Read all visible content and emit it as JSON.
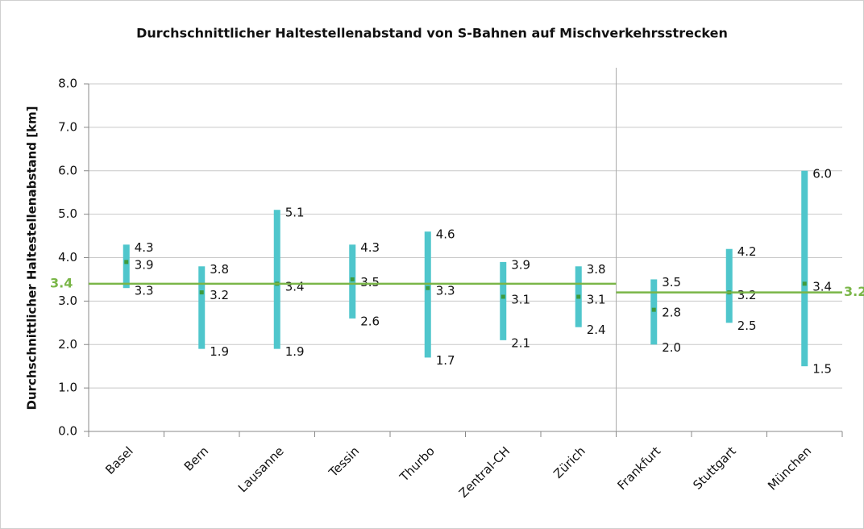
{
  "chart_data": {
    "type": "range",
    "title": "Durchschnittlicher Haltestellenabstand von S-Bahnen auf Mischverkehrsstrecken",
    "y_label": "Durchschnittlicher Haltestellenabstand [km]",
    "categories": [
      "Basel",
      "Bern",
      "Lausanne",
      "Tessin",
      "Thurbo",
      "Zentral-CH",
      "Zürich",
      "Frankfurt",
      "Stuttgart",
      "München"
    ],
    "series": [
      {
        "color": "#4fc6cc",
        "values": [
          4.3,
          3.8,
          5.1,
          4.3,
          4.6,
          3.9,
          3.8,
          3.5,
          4.2,
          6.0
        ],
        "value_labels": [
          "4.3",
          "3.8",
          "5.1",
          "4.3",
          "4.6",
          "3.9",
          "3.8",
          "3.5",
          "4.2",
          "6.0"
        ]
      },
      {
        "color": "#3e9b3e",
        "values": [
          3.9,
          3.2,
          3.4,
          3.5,
          3.3,
          3.1,
          3.1,
          2.8,
          3.2,
          3.4
        ],
        "value_labels": [
          "3.9",
          "3.2",
          "3.4",
          "3.5",
          "3.3",
          "3.1",
          "3.1",
          "2.8",
          "3.2",
          "3.4"
        ]
      },
      {
        "color": "#4fc6cc",
        "values": [
          3.3,
          1.9,
          1.9,
          2.6,
          1.7,
          2.1,
          2.4,
          2.0,
          2.5,
          1.5
        ],
        "value_labels": [
          "3.3",
          "1.9",
          "1.9",
          "2.6",
          "1.7",
          "2.1",
          "2.4",
          "2.0",
          "2.5",
          "1.5"
        ]
      }
    ],
    "reference_lines": [
      {
        "value": 3.4,
        "color": "#7ab648"
      },
      {
        "value": 3.2,
        "color": "#7ab648"
      }
    ],
    "ylim": [
      0,
      8
    ],
    "yticks": [
      {
        "value": 0,
        "label": "0.0"
      },
      {
        "value": 1,
        "label": "1.0"
      },
      {
        "value": 2,
        "label": "2.0"
      },
      {
        "value": 3,
        "label": "3.0"
      },
      {
        "value": 4,
        "label": "4.0"
      },
      {
        "value": 5,
        "label": "5.0"
      },
      {
        "value": 6,
        "label": "6.0"
      },
      {
        "value": 7,
        "label": "7.0"
      },
      {
        "value": 8,
        "label": "8.0"
      }
    ],
    "grid": true
  }
}
